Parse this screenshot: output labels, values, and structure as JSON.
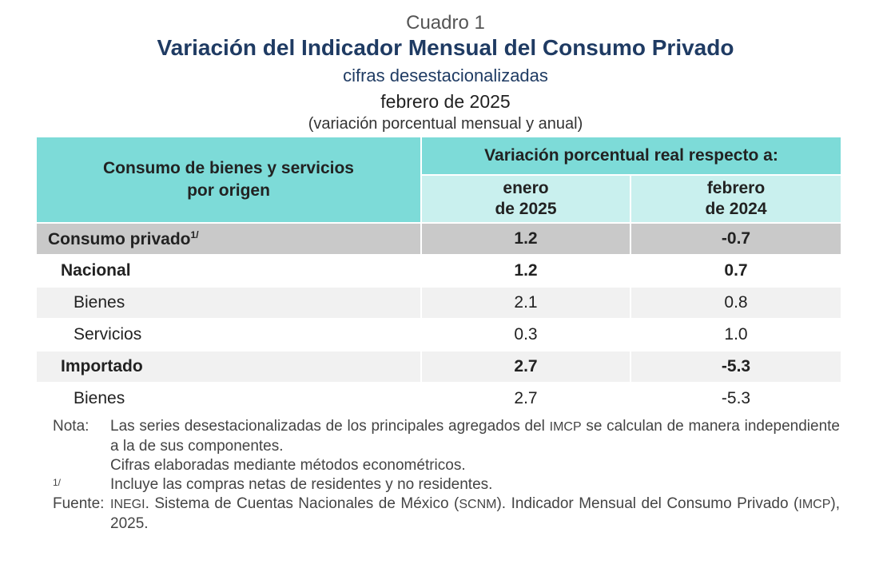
{
  "header": {
    "label": "Cuadro 1",
    "title": "Variación del Indicador Mensual del Consumo Privado",
    "subtitle": "cifras desestacionalizadas",
    "period": "febrero de 2025",
    "units": "(variación porcentual mensual y anual)"
  },
  "table": {
    "row_header_line1": "Consumo de bienes y servicios",
    "row_header_line2": "por origen",
    "group_header": "Variación porcentual real respecto a:",
    "col1_line1": "enero",
    "col1_line2": "de 2025",
    "col2_line1": "febrero",
    "col2_line2": "de 2024",
    "rows": [
      {
        "label": "Consumo privado",
        "sup": "1/",
        "mensual": "1.2",
        "anual": "-0.7"
      },
      {
        "label": "Nacional",
        "mensual": "1.2",
        "anual": "0.7"
      },
      {
        "label": "Bienes",
        "mensual": "2.1",
        "anual": "0.8"
      },
      {
        "label": "Servicios",
        "mensual": "0.3",
        "anual": "1.0"
      },
      {
        "label": "Importado",
        "mensual": "2.7",
        "anual": "-5.3"
      },
      {
        "label": "Bienes",
        "mensual": "2.7",
        "anual": "-5.3"
      }
    ]
  },
  "notes": {
    "nota_label": "Nota:",
    "nota_text_a": "Las series desestacionalizadas de los principales agregados del ",
    "nota_text_abbr": "IMCP",
    "nota_text_b": " se calculan de manera independiente a la de sus componentes.",
    "nota_line2": "Cifras elaboradas mediante métodos econométricos.",
    "fn_label": "1/",
    "fn_text": "Incluye las compras netas de residentes y no residentes.",
    "fuente_label": "Fuente:",
    "fuente_abbr1": "INEGI",
    "fuente_text_a": ". Sistema de Cuentas Nacionales de México (",
    "fuente_abbr2": "SCNM",
    "fuente_text_b": "). Indicador Mensual del Consumo Privado (",
    "fuente_abbr3": "IMCP",
    "fuente_text_c": "), 2025."
  }
}
